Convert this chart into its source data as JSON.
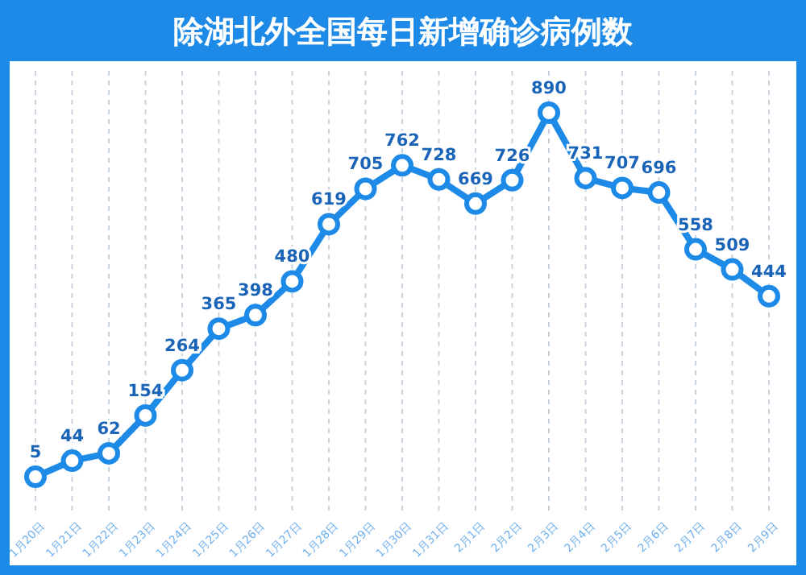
{
  "chart_data": {
    "type": "line",
    "title": "除湖北外全国每日新增确诊病例数",
    "categories": [
      "1月20日",
      "1月21日",
      "1月22日",
      "1月23日",
      "1月24日",
      "1月25日",
      "1月26日",
      "1月27日",
      "1月28日",
      "1月29日",
      "1月30日",
      "1月31日",
      "2月1日",
      "2月2日",
      "2月3日",
      "2月4日",
      "2月5日",
      "2月6日",
      "2月7日",
      "2月8日",
      "2月9日"
    ],
    "series": [
      {
        "color": "#1e8ae8",
        "values": [
          5,
          44,
          62,
          154,
          264,
          365,
          398,
          480,
          619,
          705,
          762,
          728,
          669,
          726,
          890,
          731,
          707,
          696,
          558,
          509,
          444
        ]
      }
    ],
    "data_labels": true,
    "marker": "circle",
    "grid": "x",
    "line_style": "solid"
  }
}
